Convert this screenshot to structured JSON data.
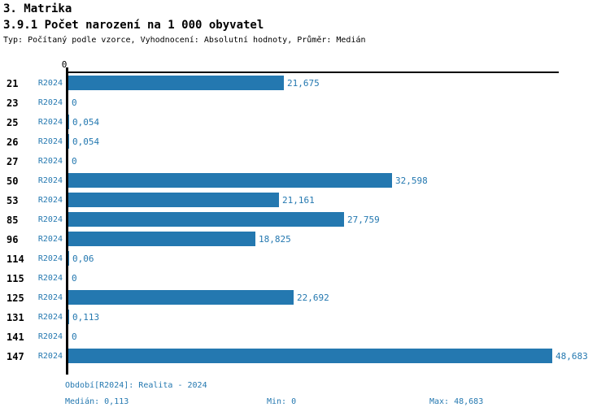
{
  "header": {
    "title": "3. Matrika",
    "subtitle": "3.9.1 Počet narození na 1 000 obyvatel",
    "meta": "Typ: Počítaný podle vzorce, Vyhodnocení: Absolutní hodnoty, Průměr: Medián"
  },
  "chart_data": {
    "type": "bar",
    "orientation": "horizontal",
    "title": "3.9.1 Počet narození na 1 000 obyvatel",
    "series_label": "R2024",
    "axis_zero_label": "0",
    "xlim": [
      0,
      48.683
    ],
    "grid": false,
    "categories": [
      "21",
      "23",
      "25",
      "26",
      "27",
      "50",
      "53",
      "85",
      "96",
      "114",
      "115",
      "125",
      "131",
      "141",
      "147"
    ],
    "values": [
      21.675,
      0,
      0.054,
      0.054,
      0,
      32.598,
      21.161,
      27.759,
      18.825,
      0.06,
      0,
      22.692,
      0.113,
      0,
      48.683
    ],
    "value_labels": [
      "21,675",
      "0",
      "0,054",
      "0,054",
      "0",
      "32,598",
      "21,161",
      "27,759",
      "18,825",
      "0,06",
      "0",
      "22,692",
      "0,113",
      "0",
      "48,683"
    ],
    "bar_color": "#2478b0"
  },
  "footer": {
    "period": "Období[R2024]: Realita - 2024",
    "median": "Medián: 0,113",
    "min": "Min: 0",
    "max": "Max: 48,683"
  },
  "colors": {
    "accent": "#2478b0",
    "text": "#000000",
    "background": "#ffffff"
  }
}
